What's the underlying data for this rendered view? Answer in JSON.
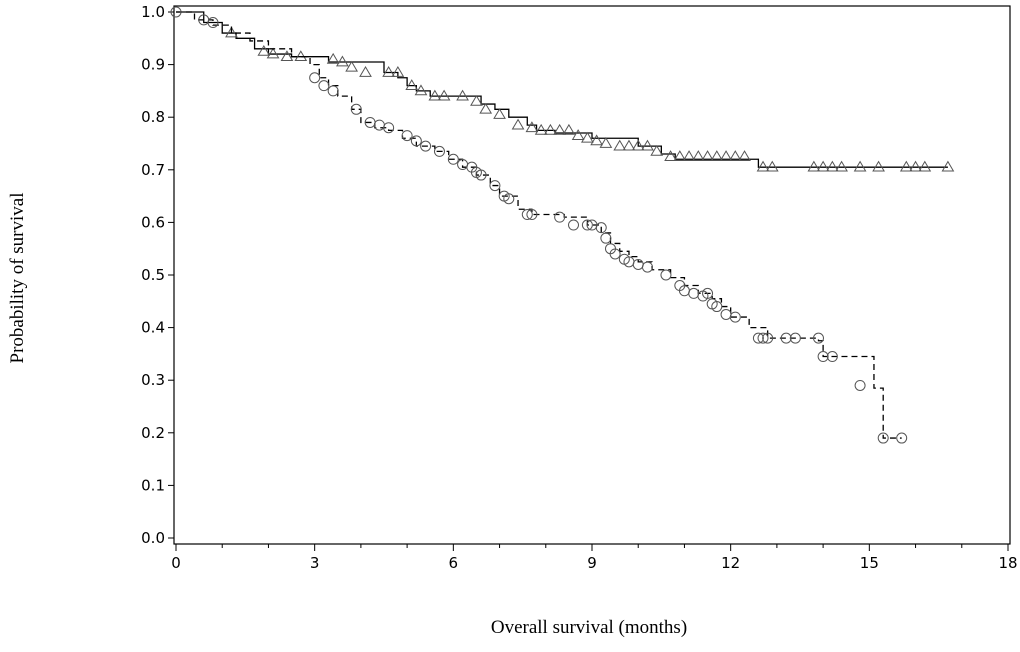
{
  "chart_data": {
    "type": "line",
    "title": "",
    "xlabel": "Overall survival (months)",
    "ylabel": "Probability of survival",
    "xlim": [
      0,
      18
    ],
    "ylim": [
      0,
      1.0
    ],
    "x_ticks": [
      "0",
      "3",
      "6",
      "9",
      "12",
      "15",
      "18"
    ],
    "y_ticks": [
      "0.0",
      "0.1",
      "0.2",
      "0.3",
      "0.4",
      "0.5",
      "0.6",
      "0.7",
      "0.8",
      "0.9",
      "1.0"
    ],
    "grid": false,
    "legend": "none",
    "series": [
      {
        "line_style": "solid",
        "censor_marker": "triangle",
        "step_x": [
          0,
          0.6,
          1.0,
          1.3,
          1.7,
          2.0,
          2.5,
          3.3,
          4.5,
          4.8,
          5.0,
          5.2,
          5.5,
          6.6,
          6.9,
          7.2,
          7.6,
          7.8,
          8.2,
          9.0,
          10.0,
          10.5,
          10.8,
          12.6,
          16.7
        ],
        "step_y": [
          1.0,
          0.98,
          0.96,
          0.95,
          0.93,
          0.92,
          0.915,
          0.905,
          0.885,
          0.875,
          0.86,
          0.85,
          0.84,
          0.825,
          0.815,
          0.8,
          0.785,
          0.775,
          0.77,
          0.76,
          0.745,
          0.73,
          0.72,
          0.705,
          0.705
        ],
        "censor_x": [
          1.2,
          1.9,
          2.1,
          2.4,
          2.7,
          3.4,
          3.6,
          3.8,
          4.1,
          4.6,
          4.8,
          5.1,
          5.3,
          5.6,
          5.8,
          6.2,
          6.5,
          6.7,
          7.0,
          7.4,
          7.7,
          7.9,
          8.1,
          8.3,
          8.5,
          8.7,
          8.9,
          9.1,
          9.3,
          9.6,
          9.8,
          10.0,
          10.2,
          10.4,
          10.7,
          10.9,
          11.1,
          11.3,
          11.5,
          11.7,
          11.9,
          12.1,
          12.3,
          12.7,
          12.9,
          13.8,
          14.0,
          14.2,
          14.4,
          14.8,
          15.2,
          15.8,
          16.0,
          16.2,
          16.7
        ],
        "censor_y": [
          0.96,
          0.925,
          0.92,
          0.915,
          0.915,
          0.91,
          0.905,
          0.895,
          0.885,
          0.885,
          0.885,
          0.86,
          0.85,
          0.84,
          0.84,
          0.84,
          0.83,
          0.815,
          0.805,
          0.785,
          0.78,
          0.775,
          0.775,
          0.775,
          0.775,
          0.765,
          0.76,
          0.755,
          0.75,
          0.745,
          0.745,
          0.745,
          0.745,
          0.735,
          0.725,
          0.725,
          0.725,
          0.725,
          0.725,
          0.725,
          0.725,
          0.725,
          0.725,
          0.705,
          0.705,
          0.705,
          0.705,
          0.705,
          0.705,
          0.705,
          0.705,
          0.705,
          0.705,
          0.705,
          0.705
        ]
      },
      {
        "line_style": "dashed",
        "censor_marker": "circle",
        "step_x": [
          0,
          0.4,
          0.8,
          1.2,
          1.6,
          2.0,
          2.5,
          2.9,
          3.1,
          3.3,
          3.5,
          3.8,
          4.0,
          4.3,
          4.6,
          4.9,
          5.2,
          5.6,
          5.9,
          6.2,
          6.5,
          6.8,
          7.0,
          7.4,
          7.7,
          8.4,
          8.9,
          9.2,
          9.4,
          9.6,
          9.8,
          10.0,
          10.3,
          10.7,
          11.0,
          11.3,
          11.6,
          11.8,
          12.0,
          12.4,
          12.8,
          13.2,
          13.6,
          13.9,
          14.0,
          14.8,
          15.1,
          15.3,
          15.7
        ],
        "step_y": [
          1.0,
          0.985,
          0.975,
          0.96,
          0.945,
          0.93,
          0.915,
          0.9,
          0.875,
          0.86,
          0.84,
          0.815,
          0.79,
          0.78,
          0.775,
          0.76,
          0.745,
          0.735,
          0.72,
          0.705,
          0.69,
          0.67,
          0.65,
          0.625,
          0.615,
          0.61,
          0.595,
          0.58,
          0.56,
          0.545,
          0.535,
          0.525,
          0.51,
          0.495,
          0.48,
          0.465,
          0.455,
          0.44,
          0.42,
          0.4,
          0.38,
          0.38,
          0.38,
          0.375,
          0.345,
          0.345,
          0.285,
          0.19,
          0.19
        ],
        "censor_x": [
          0.0,
          0.6,
          0.8,
          3.0,
          3.2,
          3.4,
          3.9,
          4.2,
          4.4,
          4.6,
          5.0,
          5.2,
          5.4,
          5.7,
          6.0,
          6.2,
          6.4,
          6.5,
          6.6,
          6.9,
          7.1,
          7.2,
          7.6,
          7.7,
          8.3,
          8.6,
          8.9,
          9.0,
          9.2,
          9.3,
          9.4,
          9.5,
          9.7,
          9.8,
          10.0,
          10.2,
          10.6,
          10.9,
          11.0,
          11.2,
          11.4,
          11.5,
          11.6,
          11.7,
          11.9,
          12.1,
          12.6,
          12.7,
          12.8,
          13.2,
          13.4,
          13.9,
          14.0,
          14.2,
          14.8,
          15.3,
          15.7
        ],
        "censor_y": [
          1.0,
          0.985,
          0.98,
          0.875,
          0.86,
          0.85,
          0.815,
          0.79,
          0.785,
          0.78,
          0.765,
          0.755,
          0.745,
          0.735,
          0.72,
          0.71,
          0.705,
          0.695,
          0.69,
          0.67,
          0.65,
          0.645,
          0.615,
          0.615,
          0.61,
          0.595,
          0.595,
          0.595,
          0.59,
          0.57,
          0.55,
          0.54,
          0.53,
          0.525,
          0.52,
          0.515,
          0.5,
          0.48,
          0.47,
          0.465,
          0.46,
          0.465,
          0.445,
          0.44,
          0.425,
          0.42,
          0.38,
          0.38,
          0.38,
          0.38,
          0.38,
          0.38,
          0.345,
          0.345,
          0.29,
          0.19,
          0.19
        ]
      }
    ]
  }
}
